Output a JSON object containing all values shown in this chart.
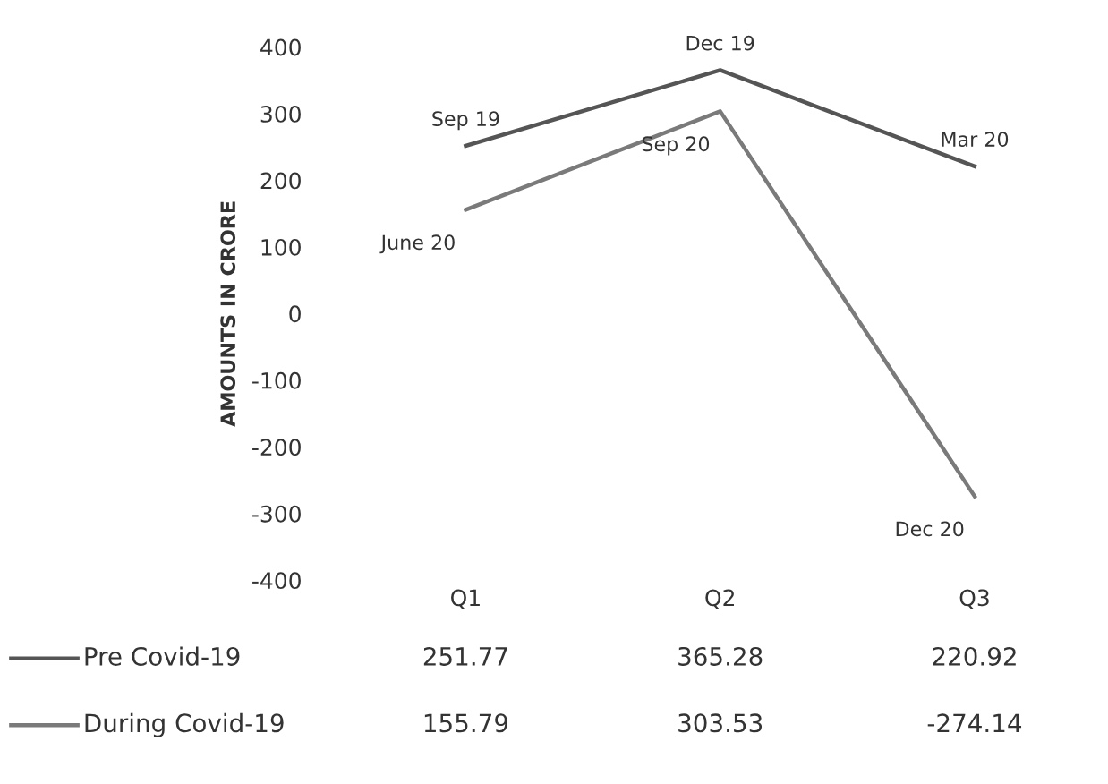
{
  "chart_data": {
    "type": "line",
    "ylabel": "AMOUNTS IN CRORE",
    "categories": [
      "Q1",
      "Q2",
      "Q3"
    ],
    "series": [
      {
        "name": "Pre Covid-19",
        "color": "#555555",
        "values": [
          251.77,
          365.28,
          220.92
        ]
      },
      {
        "name": "During Covid-19",
        "color": "#7a7a7a",
        "values": [
          155.79,
          303.53,
          -274.14
        ]
      }
    ],
    "ylim": [
      -400,
      400
    ],
    "yticks": [
      -400,
      -300,
      -200,
      -100,
      0,
      100,
      200,
      300,
      400
    ],
    "grid": false,
    "legend": "bottom",
    "data_labels": true,
    "marker": "none",
    "line_style": "solid",
    "annotations": [
      {
        "text": "Sep 19",
        "x": "Q1",
        "y": 251.77
      },
      {
        "text": "Dec 19",
        "x": "Q2",
        "y": 365.28
      },
      {
        "text": "Mar 20",
        "x": "Q3",
        "y": 220.92
      },
      {
        "text": "June 20",
        "x": "Q1",
        "y": 155.79
      },
      {
        "text": "Sep 20",
        "x": "Q2",
        "y": 303.53
      },
      {
        "text": "Dec 20",
        "x": "Q3",
        "y": -274.14
      }
    ]
  }
}
